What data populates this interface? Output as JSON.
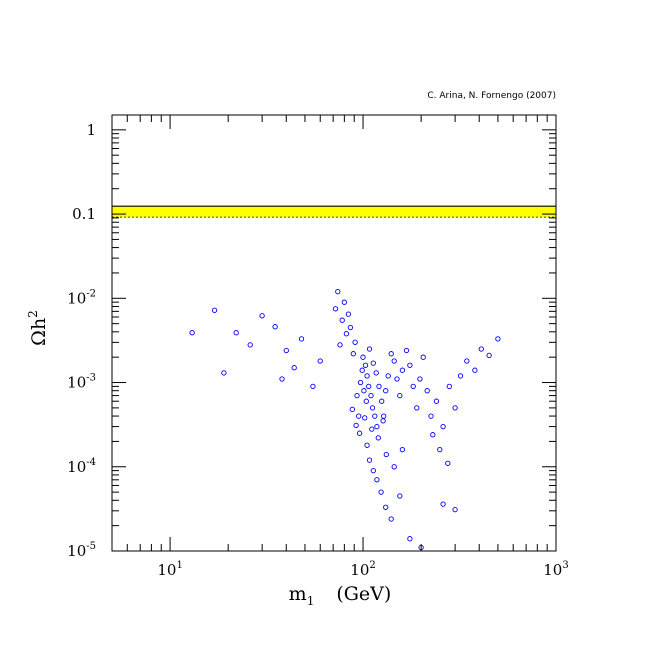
{
  "chart_data": {
    "type": "scatter",
    "title": "",
    "credit": "C. Arina, N. Fornengo (2007)",
    "xlabel": {
      "main": "m",
      "sub": "1",
      "unit": "(GeV)"
    },
    "ylabel": {
      "main": "Ωh",
      "sup": "2"
    },
    "xscale": "log",
    "yscale": "log",
    "xlim": [
      5,
      1000
    ],
    "ylim": [
      1e-05,
      1.5
    ],
    "grid": false,
    "x_ticks": [
      {
        "value": 10,
        "base": "10",
        "exp": "1"
      },
      {
        "value": 100,
        "base": "10",
        "exp": "2"
      },
      {
        "value": 1000,
        "base": "10",
        "exp": "3"
      }
    ],
    "y_ticks": [
      {
        "value": 1,
        "base": "1",
        "exp": ""
      },
      {
        "value": 0.1,
        "base": "0.1",
        "exp": ""
      },
      {
        "value": 0.01,
        "base": "10",
        "exp": "-2"
      },
      {
        "value": 0.001,
        "base": "10",
        "exp": "-3"
      },
      {
        "value": 0.0001,
        "base": "10",
        "exp": "-4"
      },
      {
        "value": 1e-05,
        "base": "10",
        "exp": "-5"
      }
    ],
    "band": {
      "ymin": 0.092,
      "ymax": 0.124,
      "color": "#ffff00",
      "edge_color": "#000000"
    },
    "marker_color": "#0000ff",
    "series": [
      {
        "points": [
          [
            100,
            0.002
          ],
          [
            103,
            0.0016
          ],
          [
            105,
            0.0012
          ],
          [
            107,
            0.0009
          ],
          [
            110,
            0.0007
          ],
          [
            112,
            0.0005
          ],
          [
            115,
            0.0004
          ],
          [
            118,
            0.0003
          ],
          [
            95,
            0.0004
          ],
          [
            93,
            0.0007
          ],
          [
            97,
            0.001
          ],
          [
            99,
            0.0014
          ],
          [
            101,
            0.0008
          ],
          [
            104,
            0.0006
          ],
          [
            108,
            0.0025
          ],
          [
            113,
            0.0017
          ],
          [
            117,
            0.0013
          ],
          [
            121,
            0.0009
          ],
          [
            125,
            0.0006
          ],
          [
            128,
            0.0004
          ],
          [
            131,
            0.0008
          ],
          [
            135,
            0.0012
          ],
          [
            140,
            0.0022
          ],
          [
            145,
            0.0018
          ],
          [
            150,
            0.0011
          ],
          [
            155,
            0.0007
          ],
          [
            160,
            0.0014
          ],
          [
            168,
            0.0024
          ],
          [
            175,
            0.0016
          ],
          [
            182,
            0.0009
          ],
          [
            190,
            0.0005
          ],
          [
            197,
            0.0011
          ],
          [
            205,
            0.002
          ],
          [
            215,
            0.0008
          ],
          [
            225,
            0.0004
          ],
          [
            240,
            0.0006
          ],
          [
            260,
            0.0003
          ],
          [
            280,
            0.0009
          ],
          [
            300,
            0.0005
          ],
          [
            320,
            0.0012
          ],
          [
            345,
            0.0018
          ],
          [
            380,
            0.0014
          ],
          [
            410,
            0.0025
          ],
          [
            450,
            0.0021
          ],
          [
            500,
            0.0033
          ],
          [
            91,
            0.003
          ],
          [
            89,
            0.0022
          ],
          [
            86,
            0.0045
          ],
          [
            84,
            0.0065
          ],
          [
            82,
            0.0038
          ],
          [
            80,
            0.009
          ],
          [
            78,
            0.0055
          ],
          [
            76,
            0.0028
          ],
          [
            74,
            0.012
          ],
          [
            72,
            0.0075
          ],
          [
            60,
            0.0018
          ],
          [
            55,
            0.0009
          ],
          [
            48,
            0.0033
          ],
          [
            44,
            0.0015
          ],
          [
            40,
            0.0024
          ],
          [
            38,
            0.0011
          ],
          [
            35,
            0.0046
          ],
          [
            30,
            0.0062
          ],
          [
            26,
            0.0028
          ],
          [
            22,
            0.0039
          ],
          [
            19,
            0.0013
          ],
          [
            17,
            0.0072
          ],
          [
            13,
            0.0039
          ],
          [
            105,
            0.00018
          ],
          [
            108,
            0.00012
          ],
          [
            113,
            9e-05
          ],
          [
            118,
            7e-05
          ],
          [
            124,
            5e-05
          ],
          [
            131,
            3.3e-05
          ],
          [
            140,
            2.4e-05
          ],
          [
            155,
            4.5e-05
          ],
          [
            175,
            1.4e-05
          ],
          [
            200,
            1.1e-05
          ],
          [
            260,
            3.6e-05
          ],
          [
            300,
            3.1e-05
          ],
          [
            230,
            0.00024
          ],
          [
            250,
            0.00016
          ],
          [
            275,
            0.00011
          ],
          [
            120,
            0.00022
          ],
          [
            132,
            0.00014
          ],
          [
            145,
            0.0001
          ],
          [
            160,
            0.00016
          ],
          [
            111,
            0.00028
          ],
          [
            127,
            0.00035
          ],
          [
            102,
            0.00038
          ],
          [
            96,
            0.00025
          ],
          [
            92,
            0.00031
          ],
          [
            88,
            0.00048
          ]
        ]
      }
    ]
  }
}
